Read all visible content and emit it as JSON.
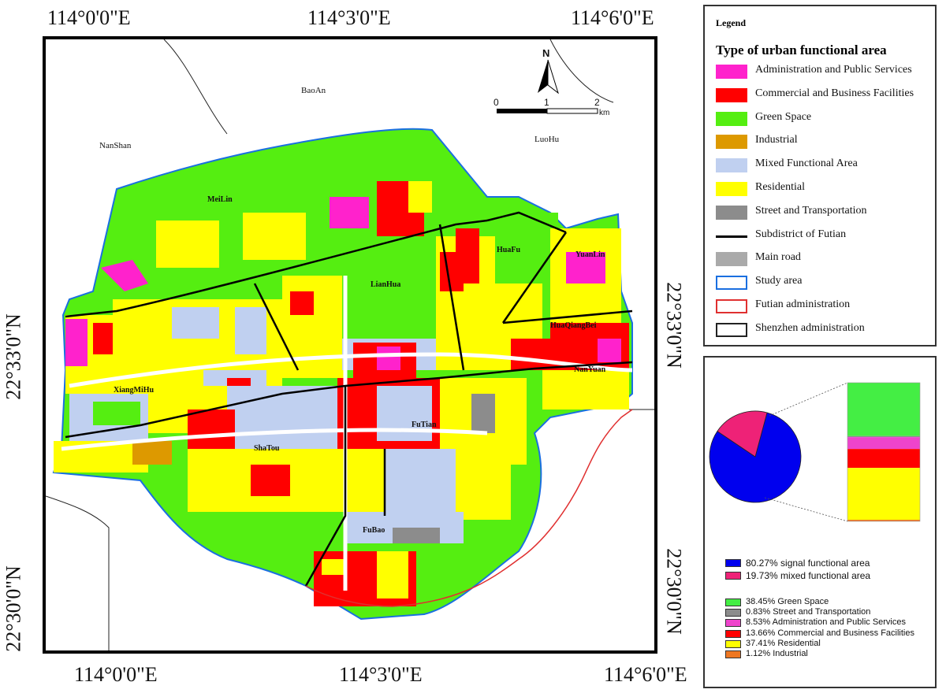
{
  "coords": {
    "top": [
      "114°0'0\"E",
      "114°3'0\"E",
      "114°6'0\"E"
    ],
    "bottom": [
      "114°0'0\"E",
      "114°3'0\"E",
      "114°6'0\"E"
    ],
    "left": [
      "22°33'0\"N",
      "22°30'0\"N"
    ],
    "right": [
      "22°33'0\"N",
      "22°30'0\"N"
    ]
  },
  "map": {
    "regions": [
      "BaoAn",
      "NanShan",
      "LuoHu"
    ],
    "subdistricts": [
      "MeiLin",
      "HuaFu",
      "YuanLin",
      "LianHua",
      "HuaQiangBei",
      "NanYuan",
      "XiangMiHu",
      "FuTian",
      "ShaTou",
      "FuBao"
    ],
    "north_label": "N",
    "scale": {
      "ticks": [
        "0",
        "1",
        "2"
      ],
      "unit": "km"
    }
  },
  "legend": {
    "heading": "Legend",
    "title": "Type of urban functional area",
    "items": [
      {
        "label": "Administration and Public Services",
        "color": "#ff22cc",
        "kind": "fill"
      },
      {
        "label": "Commercial and Business Facilities",
        "color": "#ff0000",
        "kind": "fill"
      },
      {
        "label": "Green Space",
        "color": "#55ee11",
        "kind": "fill"
      },
      {
        "label": "Industrial",
        "color": "#dd9900",
        "kind": "fill"
      },
      {
        "label": "Mixed Functional Area",
        "color": "#c0d0f0",
        "kind": "fill"
      },
      {
        "label": "Residential",
        "color": "#ffff00",
        "kind": "fill"
      },
      {
        "label": "Street and Transportation",
        "color": "#8c8c8c",
        "kind": "fill"
      },
      {
        "label": "Subdistrict of Futian",
        "color": "#000000",
        "kind": "line"
      },
      {
        "label": "Main road",
        "color": "#aaaaaa",
        "kind": "fill"
      },
      {
        "label": "Study area",
        "color": "#1a6fe0",
        "kind": "outline"
      },
      {
        "label": "Futian administration",
        "color": "#e03030",
        "kind": "outline"
      },
      {
        "label": "Shenzhen administration",
        "color": "#222222",
        "kind": "outline"
      }
    ]
  },
  "stats": {
    "pie": [
      {
        "label": "80.27%  signal functional area",
        "value": 80.27,
        "color": "#0000ee"
      },
      {
        "label": "19.73%  mixed functional area",
        "value": 19.73,
        "color": "#ee2277"
      }
    ],
    "bar": [
      {
        "label": "38.45%  Green Space",
        "value": 38.45,
        "color": "#44ee44"
      },
      {
        "label": "0.83%  Street and Transportation",
        "value": 0.83,
        "color": "#8c8c8c"
      },
      {
        "label": "8.53%  Administration and Public Services",
        "value": 8.53,
        "color": "#ee44cc"
      },
      {
        "label": "13.66%  Commercial and Business Facilities",
        "value": 13.66,
        "color": "#ff0000"
      },
      {
        "label": "37.41%  Residential",
        "value": 37.41,
        "color": "#ffff00"
      },
      {
        "label": "1.12%  Industrial",
        "value": 1.12,
        "color": "#ee7722"
      }
    ]
  }
}
